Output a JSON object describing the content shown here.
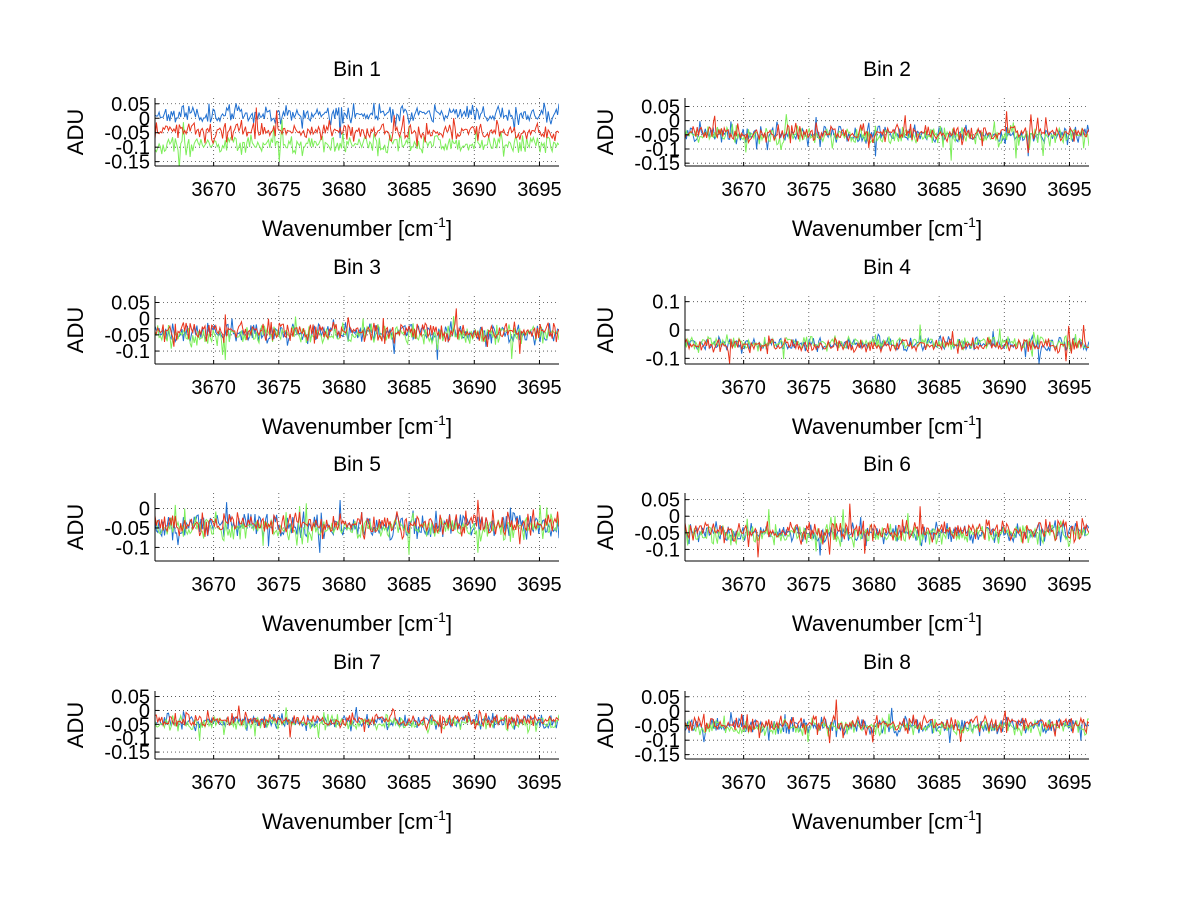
{
  "chart_data": [
    {
      "type": "line",
      "title": "Bin 1",
      "xlabel": "Wavenumber [cm",
      "xlabel_sup": "-1",
      "xlabel_end": "]",
      "ylabel": "ADU",
      "xlim": [
        3665.5,
        3696.5
      ],
      "ylim": [
        -0.165,
        0.07
      ],
      "xticks": [
        3670,
        3675,
        3680,
        3685,
        3690,
        3695
      ],
      "xticklabels": [
        "3670",
        "3675",
        "3680",
        "3685",
        "3690",
        "3695"
      ],
      "yticks": [
        0.05,
        0,
        -0.05,
        -0.1,
        -0.15
      ],
      "yticklabels": [
        "0.05",
        "0",
        "-0.05",
        "-0.1",
        "-0.15"
      ],
      "series": [
        {
          "name": "blue",
          "color": "#1f6fd0",
          "mean": 0.015,
          "noise": 0.028,
          "n": 300,
          "seed": 11
        },
        {
          "name": "green",
          "color": "#7dee5a",
          "mean": -0.09,
          "noise": 0.03,
          "n": 300,
          "seed": 12
        },
        {
          "name": "red",
          "color": "#e8341c",
          "mean": -0.045,
          "noise": 0.03,
          "n": 300,
          "seed": 13
        }
      ]
    },
    {
      "type": "line",
      "title": "Bin 2",
      "xlabel": "Wavenumber [cm",
      "xlabel_sup": "-1",
      "xlabel_end": "]",
      "ylabel": "ADU",
      "xlim": [
        3665.5,
        3696.5
      ],
      "ylim": [
        -0.16,
        0.08
      ],
      "xticks": [
        3670,
        3675,
        3680,
        3685,
        3690,
        3695
      ],
      "xticklabels": [
        "3670",
        "3675",
        "3680",
        "3685",
        "3690",
        "3695"
      ],
      "yticks": [
        0.05,
        0,
        -0.05,
        -0.1,
        -0.15
      ],
      "yticklabels": [
        "0.05",
        "0",
        "-0.05",
        "-0.1",
        "-0.15"
      ],
      "series": [
        {
          "name": "blue",
          "color": "#1f6fd0",
          "mean": -0.05,
          "noise": 0.03,
          "n": 300,
          "seed": 21
        },
        {
          "name": "green",
          "color": "#7dee5a",
          "mean": -0.055,
          "noise": 0.028,
          "n": 300,
          "seed": 22
        },
        {
          "name": "red",
          "color": "#e8341c",
          "mean": -0.045,
          "noise": 0.028,
          "n": 300,
          "seed": 23
        }
      ]
    },
    {
      "type": "line",
      "title": "Bin 3",
      "xlabel": "Wavenumber [cm",
      "xlabel_sup": "-1",
      "xlabel_end": "]",
      "ylabel": "ADU",
      "xlim": [
        3665.5,
        3696.5
      ],
      "ylim": [
        -0.14,
        0.07
      ],
      "xticks": [
        3670,
        3675,
        3680,
        3685,
        3690,
        3695
      ],
      "xticklabels": [
        "3670",
        "3675",
        "3680",
        "3685",
        "3690",
        "3695"
      ],
      "yticks": [
        0.05,
        0,
        -0.05,
        -0.1
      ],
      "yticklabels": [
        "0.05",
        "0",
        "-0.05",
        "-0.1"
      ],
      "series": [
        {
          "name": "blue",
          "color": "#1f6fd0",
          "mean": -0.045,
          "noise": 0.028,
          "n": 300,
          "seed": 31
        },
        {
          "name": "green",
          "color": "#7dee5a",
          "mean": -0.05,
          "noise": 0.028,
          "n": 300,
          "seed": 32
        },
        {
          "name": "red",
          "color": "#e8341c",
          "mean": -0.04,
          "noise": 0.028,
          "n": 300,
          "seed": 33
        }
      ]
    },
    {
      "type": "line",
      "title": "Bin 4",
      "xlabel": "Wavenumber [cm",
      "xlabel_sup": "-1",
      "xlabel_end": "]",
      "ylabel": "ADU",
      "xlim": [
        3665.5,
        3696.5
      ],
      "ylim": [
        -0.12,
        0.12
      ],
      "xticks": [
        3670,
        3675,
        3680,
        3685,
        3690,
        3695
      ],
      "xticklabels": [
        "3670",
        "3675",
        "3680",
        "3685",
        "3690",
        "3695"
      ],
      "yticks": [
        0.1,
        0,
        -0.1
      ],
      "yticklabels": [
        "0.1",
        "0",
        "-0.1"
      ],
      "series": [
        {
          "name": "blue",
          "color": "#1f6fd0",
          "mean": -0.05,
          "noise": 0.024,
          "n": 300,
          "seed": 41
        },
        {
          "name": "green",
          "color": "#7dee5a",
          "mean": -0.045,
          "noise": 0.024,
          "n": 300,
          "seed": 42
        },
        {
          "name": "red",
          "color": "#e8341c",
          "mean": -0.055,
          "noise": 0.024,
          "n": 300,
          "seed": 43
        }
      ]
    },
    {
      "type": "line",
      "title": "Bin 5",
      "xlabel": "Wavenumber [cm",
      "xlabel_sup": "-1",
      "xlabel_end": "]",
      "ylabel": "ADU",
      "xlim": [
        3665.5,
        3696.5
      ],
      "ylim": [
        -0.135,
        0.04
      ],
      "xticks": [
        3670,
        3675,
        3680,
        3685,
        3690,
        3695
      ],
      "xticklabels": [
        "3670",
        "3675",
        "3680",
        "3685",
        "3690",
        "3695"
      ],
      "yticks": [
        0,
        -0.05,
        -0.1
      ],
      "yticklabels": [
        "0",
        "-0.05",
        "-0.1"
      ],
      "series": [
        {
          "name": "blue",
          "color": "#1f6fd0",
          "mean": -0.045,
          "noise": 0.03,
          "n": 300,
          "seed": 51
        },
        {
          "name": "green",
          "color": "#7dee5a",
          "mean": -0.05,
          "noise": 0.028,
          "n": 300,
          "seed": 52
        },
        {
          "name": "red",
          "color": "#e8341c",
          "mean": -0.04,
          "noise": 0.028,
          "n": 300,
          "seed": 53
        }
      ]
    },
    {
      "type": "line",
      "title": "Bin 6",
      "xlabel": "Wavenumber [cm",
      "xlabel_sup": "-1",
      "xlabel_end": "]",
      "ylabel": "ADU",
      "xlim": [
        3665.5,
        3696.5
      ],
      "ylim": [
        -0.135,
        0.07
      ],
      "xticks": [
        3670,
        3675,
        3680,
        3685,
        3690,
        3695
      ],
      "xticklabels": [
        "3670",
        "3675",
        "3680",
        "3685",
        "3690",
        "3695"
      ],
      "yticks": [
        0.05,
        0,
        -0.05,
        -0.1
      ],
      "yticklabels": [
        "0.05",
        "0",
        "-0.05",
        "-0.1"
      ],
      "series": [
        {
          "name": "blue",
          "color": "#1f6fd0",
          "mean": -0.05,
          "noise": 0.028,
          "n": 300,
          "seed": 61
        },
        {
          "name": "green",
          "color": "#7dee5a",
          "mean": -0.055,
          "noise": 0.028,
          "n": 300,
          "seed": 62
        },
        {
          "name": "red",
          "color": "#e8341c",
          "mean": -0.045,
          "noise": 0.028,
          "n": 300,
          "seed": 63
        }
      ]
    },
    {
      "type": "line",
      "title": "Bin 7",
      "xlabel": "Wavenumber [cm",
      "xlabel_sup": "-1",
      "xlabel_end": "]",
      "ylabel": "ADU",
      "xlim": [
        3665.5,
        3696.5
      ],
      "ylim": [
        -0.175,
        0.07
      ],
      "xticks": [
        3670,
        3675,
        3680,
        3685,
        3690,
        3695
      ],
      "xticklabels": [
        "3670",
        "3675",
        "3680",
        "3685",
        "3690",
        "3695"
      ],
      "yticks": [
        0.05,
        0,
        -0.05,
        -0.1,
        -0.15
      ],
      "yticklabels": [
        "0.05",
        "0",
        "-0.05",
        "-0.1",
        "-0.15"
      ],
      "series": [
        {
          "name": "blue",
          "color": "#1f6fd0",
          "mean": -0.04,
          "noise": 0.024,
          "n": 300,
          "seed": 71
        },
        {
          "name": "green",
          "color": "#7dee5a",
          "mean": -0.045,
          "noise": 0.024,
          "n": 300,
          "seed": 72
        },
        {
          "name": "red",
          "color": "#e8341c",
          "mean": -0.035,
          "noise": 0.024,
          "n": 300,
          "seed": 73
        }
      ]
    },
    {
      "type": "line",
      "title": "Bin 8",
      "xlabel": "Wavenumber [cm",
      "xlabel_sup": "-1",
      "xlabel_end": "]",
      "ylabel": "ADU",
      "xlim": [
        3665.5,
        3696.5
      ],
      "ylim": [
        -0.165,
        0.07
      ],
      "xticks": [
        3670,
        3675,
        3680,
        3685,
        3690,
        3695
      ],
      "xticklabels": [
        "3670",
        "3675",
        "3680",
        "3685",
        "3690",
        "3695"
      ],
      "yticks": [
        0.05,
        0,
        -0.05,
        -0.1,
        -0.15
      ],
      "yticklabels": [
        "0.05",
        "0",
        "-0.05",
        "-0.1",
        "-0.15"
      ],
      "series": [
        {
          "name": "blue",
          "color": "#1f6fd0",
          "mean": -0.05,
          "noise": 0.028,
          "n": 300,
          "seed": 81
        },
        {
          "name": "green",
          "color": "#7dee5a",
          "mean": -0.055,
          "noise": 0.026,
          "n": 300,
          "seed": 82
        },
        {
          "name": "red",
          "color": "#e8341c",
          "mean": -0.045,
          "noise": 0.026,
          "n": 300,
          "seed": 83
        }
      ]
    }
  ]
}
